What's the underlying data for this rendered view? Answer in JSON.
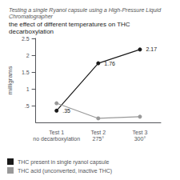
{
  "chart_data": {
    "type": "line",
    "subtitle": "Testing a single Ryanol capsule using a High-Pressure Liquid Chromatographer",
    "title": "the effect of different temperatures on THC decarboxylation",
    "ylabel": "milligrams",
    "categories": [
      "Test 1\nno decarboxylation",
      "Test 2\n275°",
      "Test 3\n300°"
    ],
    "series": [
      {
        "name": "THC present in single ryanol capsule",
        "color": "#1a1a1a",
        "marker": "circle",
        "values": [
          0.35,
          1.76,
          2.17
        ],
        "data_labels": true,
        "value_labels": [
          ".35",
          "1.76",
          "2.17"
        ]
      },
      {
        "name": "THC acid (unconverted, inactive THC)",
        "color": "#999999",
        "marker": "circle",
        "values": [
          0.57,
          0.12,
          0.17
        ]
      }
    ],
    "ylim": [
      0,
      2.5
    ],
    "yticks": [
      {
        "value": 0.5,
        "label": ".5"
      },
      1,
      1.5,
      2,
      2.5
    ],
    "grid": false,
    "legend": "lower left"
  }
}
